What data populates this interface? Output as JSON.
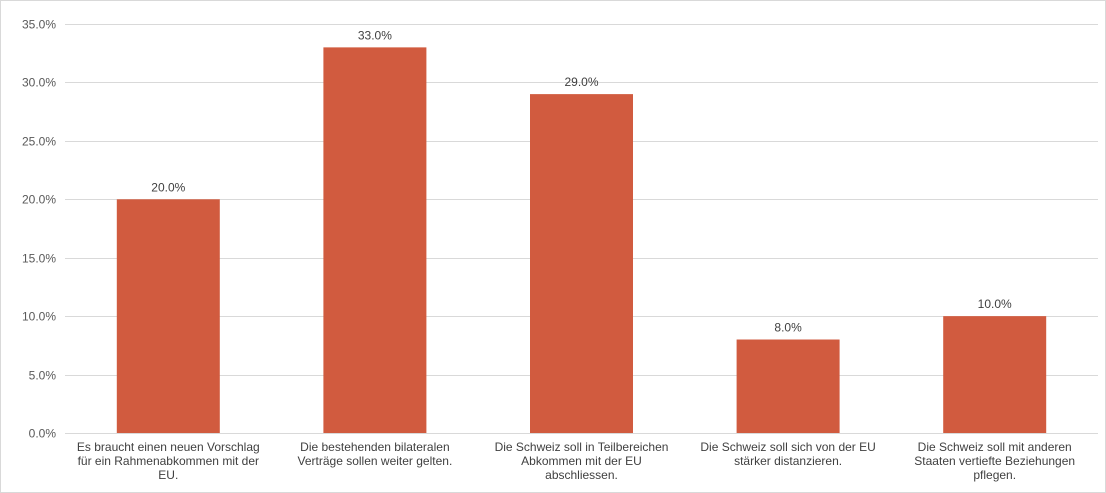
{
  "chart_data": {
    "type": "bar",
    "categories": [
      "Es braucht einen neuen Vorschlag für ein Rahmenabkommen mit der EU.",
      "Die bestehenden bilateralen Verträge sollen weiter gelten.",
      "Die Schweiz soll in Teilbereichen Abkommen mit der EU abschliessen.",
      "Die Schweiz soll sich von der EU stärker distanzieren.",
      "Die Schweiz soll mit anderen Staaten vertiefte Beziehungen pflegen."
    ],
    "category_lines": [
      [
        "Es braucht einen neuen Vorschlag",
        "für ein Rahmenabkommen mit der",
        "EU."
      ],
      [
        "Die bestehenden bilateralen",
        "Verträge sollen weiter gelten."
      ],
      [
        "Die Schweiz soll in Teilbereichen",
        "Abkommen mit der EU",
        "abschliessen."
      ],
      [
        "Die Schweiz soll sich von der EU",
        "stärker distanzieren."
      ],
      [
        "Die Schweiz soll mit anderen",
        "Staaten vertiefte Beziehungen",
        "pflegen."
      ]
    ],
    "values": [
      20.0,
      33.0,
      29.0,
      8.0,
      10.0
    ],
    "data_labels": [
      "20.0%",
      "33.0%",
      "29.0%",
      "8.0%",
      "10.0%"
    ],
    "y_ticks": [
      "0.0%",
      "5.0%",
      "10.0%",
      "15.0%",
      "20.0%",
      "25.0%",
      "30.0%",
      "35.0%"
    ],
    "y_tick_values": [
      0,
      5,
      10,
      15,
      20,
      25,
      30,
      35
    ],
    "ylim": [
      0,
      35
    ],
    "grid": true,
    "legend": false,
    "title": "",
    "xlabel": "",
    "ylabel": "",
    "colors": {
      "bar": "#D15B3F",
      "grid": "#D9D9D9",
      "axis": "#D9D9D9",
      "text": "#595959"
    }
  }
}
